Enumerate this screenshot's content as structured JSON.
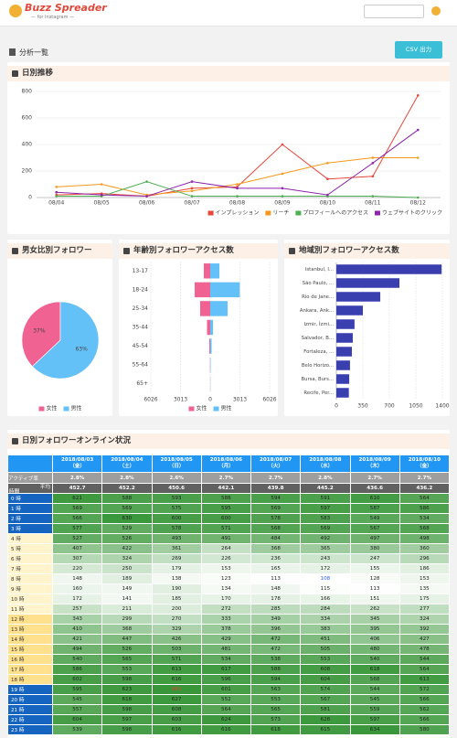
{
  "header": {
    "logo": "Buzz Spreader",
    "logo_sub": "— for Instagram —"
  },
  "page": {
    "title": "分析一覧",
    "csv_button": "CSV 出力"
  },
  "chart_data": [
    {
      "type": "line",
      "title": "日別推移",
      "categories": [
        "08/04",
        "08/05",
        "08/06",
        "08/07",
        "08/08",
        "08/09",
        "08/10",
        "08/11",
        "08/12"
      ],
      "series": [
        {
          "name": "インプレッション",
          "color": "#e8473a",
          "values": [
            20,
            30,
            10,
            70,
            80,
            400,
            140,
            160,
            770
          ]
        },
        {
          "name": "リーチ",
          "color": "#f39a1e",
          "values": [
            80,
            100,
            20,
            50,
            100,
            180,
            260,
            300,
            300
          ]
        },
        {
          "name": "プロフィールへのアクセス",
          "color": "#4caf50",
          "values": [
            10,
            10,
            120,
            10,
            10,
            10,
            10,
            10,
            0
          ]
        },
        {
          "name": "ウェブサイトのクリック",
          "color": "#8e24aa",
          "values": [
            40,
            20,
            10,
            120,
            70,
            70,
            20,
            260,
            510
          ]
        }
      ],
      "ylim": [
        0,
        800
      ],
      "yticks": [
        0,
        200,
        400,
        600,
        800
      ],
      "grid": true,
      "legend": "bottom"
    },
    {
      "type": "pie",
      "title": "男女比別フォロワー",
      "categories": [
        "女性",
        "男性"
      ],
      "values": [
        37,
        63
      ],
      "value_labels": [
        "37%",
        "63%"
      ],
      "colors": [
        "#f06292",
        "#64c1f8"
      ],
      "legend": "bottom"
    },
    {
      "type": "hbar-diverging",
      "title": "年齢別フォロワーアクセス数",
      "categories": [
        "13-17",
        "18-24",
        "25-34",
        "35-44",
        "45-54",
        "55-64",
        "65+"
      ],
      "series": [
        {
          "name": "女性",
          "color": "#f06292",
          "values": [
            -650,
            -1580,
            -1020,
            -325,
            -90,
            -20,
            -10
          ]
        },
        {
          "name": "男性",
          "color": "#64c1f8",
          "values": [
            930,
            3000,
            1760,
            280,
            140,
            40,
            20
          ]
        }
      ],
      "xlim": [
        -6026,
        6026
      ],
      "xticks": [
        {
          "value": -6026,
          "label": "6026"
        },
        {
          "value": -3013,
          "label": "3013"
        },
        0,
        3013,
        6026
      ],
      "grid": true,
      "legend": "bottom"
    },
    {
      "type": "hbar",
      "title": "地域別フォロワーアクセス数",
      "categories": [
        "Istanbul, I...",
        "São Paulo, ...",
        "Rio de Jane...",
        "Ankara, Ank...",
        "Izmir, İzmi...",
        "Salvador, B...",
        "Fortaleza, ...",
        "Belo Horizo...",
        "Bursa, Burs...",
        "Recife, Per..."
      ],
      "values": [
        1390,
        833,
        580,
        350,
        240,
        217,
        205,
        180,
        170,
        165
      ],
      "color": "#3a3fb0",
      "xlim": [
        0,
        1400
      ],
      "xticks": [
        0,
        350,
        700,
        1050,
        1400
      ],
      "grid": true
    }
  ],
  "online_table": {
    "title": "日別フォロワーオンライン状況",
    "active_label": "アクティブ率",
    "avg_label": "平均",
    "time_label": "時間",
    "columns": [
      {
        "date": "2018/08/03",
        "weekday": "（金）"
      },
      {
        "date": "2018/08/04",
        "weekday": "（土）"
      },
      {
        "date": "2018/08/05",
        "weekday": "（日）"
      },
      {
        "date": "2018/08/06",
        "weekday": "（月）"
      },
      {
        "date": "2018/08/07",
        "weekday": "（火）"
      },
      {
        "date": "2018/08/08",
        "weekday": "（水）"
      },
      {
        "date": "2018/08/09",
        "weekday": "（木）"
      },
      {
        "date": "2018/08/10",
        "weekday": "（金）"
      }
    ],
    "active_rate": [
      "2.8%",
      "2.8%",
      "2.6%",
      "2.7%",
      "2.7%",
      "2.8%",
      "2.7%",
      "2.7%"
    ],
    "average": [
      452.7,
      452.2,
      450.6,
      442.1,
      439.8,
      445.2,
      436.6,
      436.2
    ],
    "rows": [
      {
        "label": "0 時",
        "values": [
          621,
          588,
          593,
          586,
          594,
          591,
          610,
          564
        ]
      },
      {
        "label": "1 時",
        "values": [
          569,
          569,
          575,
          595,
          569,
          597,
          587,
          586
        ]
      },
      {
        "label": "2 時",
        "values": [
          566,
          630,
          600,
          600,
          578,
          583,
          549,
          534
        ]
      },
      {
        "label": "3 時",
        "values": [
          577,
          529,
          578,
          571,
          568,
          569,
          567,
          568
        ]
      },
      {
        "label": "4 時",
        "values": [
          527,
          526,
          493,
          491,
          484,
          492,
          497,
          498
        ]
      },
      {
        "label": "5 時",
        "values": [
          407,
          422,
          361,
          264,
          368,
          365,
          380,
          360
        ]
      },
      {
        "label": "6 時",
        "values": [
          307,
          324,
          269,
          226,
          236,
          243,
          247,
          296
        ]
      },
      {
        "label": "7 時",
        "values": [
          220,
          250,
          179,
          153,
          165,
          172,
          155,
          186
        ]
      },
      {
        "label": "8 時",
        "values": [
          148,
          189,
          138,
          123,
          113,
          108,
          128,
          153
        ]
      },
      {
        "label": "9 時",
        "values": [
          160,
          149,
          190,
          134,
          148,
          115,
          113,
          135
        ]
      },
      {
        "label": "10 時",
        "values": [
          172,
          141,
          185,
          170,
          178,
          166,
          151,
          175
        ]
      },
      {
        "label": "11 時",
        "values": [
          257,
          211,
          200,
          272,
          285,
          284,
          262,
          277
        ]
      },
      {
        "label": "12 時",
        "values": [
          343,
          299,
          270,
          333,
          349,
          334,
          345,
          324
        ]
      },
      {
        "label": "13 時",
        "values": [
          410,
          368,
          329,
          378,
          396,
          383,
          395,
          392
        ]
      },
      {
        "label": "14 時",
        "values": [
          421,
          447,
          426,
          429,
          472,
          451,
          406,
          427
        ]
      },
      {
        "label": "15 時",
        "values": [
          494,
          526,
          503,
          481,
          472,
          505,
          480,
          478
        ]
      },
      {
        "label": "16 時",
        "values": [
          540,
          565,
          571,
          534,
          538,
          553,
          540,
          544
        ]
      },
      {
        "label": "17 時",
        "values": [
          586,
          553,
          613,
          617,
          588,
          608,
          618,
          564
        ]
      },
      {
        "label": "18 時",
        "values": [
          602,
          598,
          616,
          596,
          594,
          604,
          568,
          613
        ]
      },
      {
        "label": "19 時",
        "values": [
          595,
          623,
          641,
          601,
          563,
          574,
          544,
          572
        ]
      },
      {
        "label": "20 時",
        "values": [
          545,
          618,
          627,
          552,
          553,
          567,
          545,
          566
        ]
      },
      {
        "label": "21 時",
        "values": [
          557,
          598,
          608,
          564,
          565,
          581,
          559,
          562
        ]
      },
      {
        "label": "22 時",
        "values": [
          604,
          597,
          603,
          624,
          573,
          628,
          597,
          566
        ]
      },
      {
        "label": "23 時",
        "values": [
          539,
          598,
          616,
          616,
          618,
          615,
          634,
          580
        ]
      }
    ]
  }
}
